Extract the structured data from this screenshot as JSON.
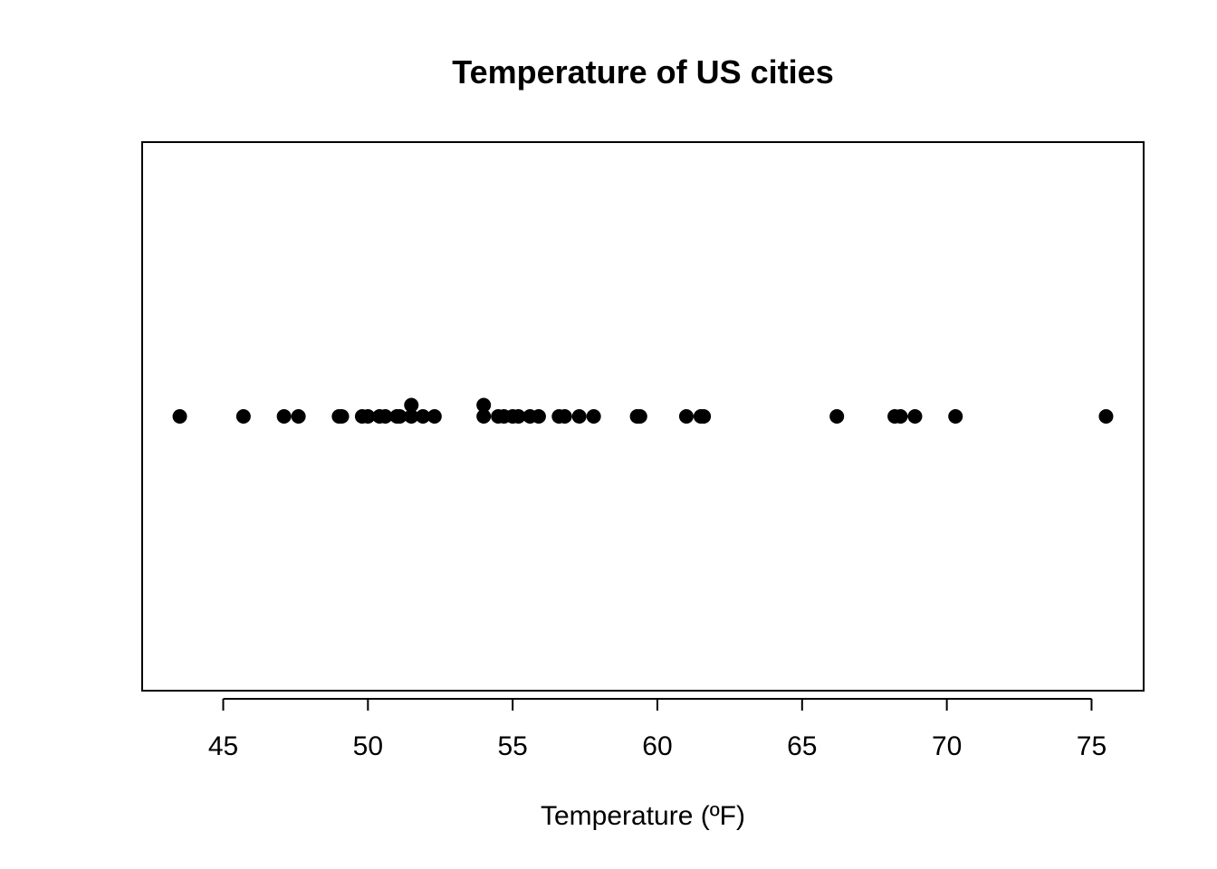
{
  "chart_data": {
    "type": "scatter",
    "subtype": "stripchart-stack",
    "title": "Temperature of US cities",
    "xlabel": "Temperature (ºF)",
    "ylabel": "",
    "xlim": [
      42.2,
      76.8
    ],
    "x_ticks": [
      45,
      50,
      55,
      60,
      65,
      70,
      75
    ],
    "x_tick_labels": [
      "45",
      "50",
      "55",
      "60",
      "65",
      "70",
      "75"
    ],
    "grid": false,
    "legend": "none",
    "point_color": "#000000",
    "series": [
      {
        "values": [
          43.5,
          45.7,
          47.1,
          47.6,
          49.0,
          49.1,
          49.8,
          50.0,
          50.4,
          50.6,
          51.0,
          51.1,
          51.5,
          51.5,
          51.9,
          52.3,
          54.0,
          54.0,
          54.5,
          54.7,
          55.0,
          55.2,
          55.6,
          55.9,
          56.6,
          56.8,
          57.3,
          57.8,
          59.3,
          59.4,
          61.0,
          61.5,
          61.6,
          66.2,
          68.2,
          68.4,
          68.9,
          70.3,
          75.5
        ]
      }
    ]
  }
}
